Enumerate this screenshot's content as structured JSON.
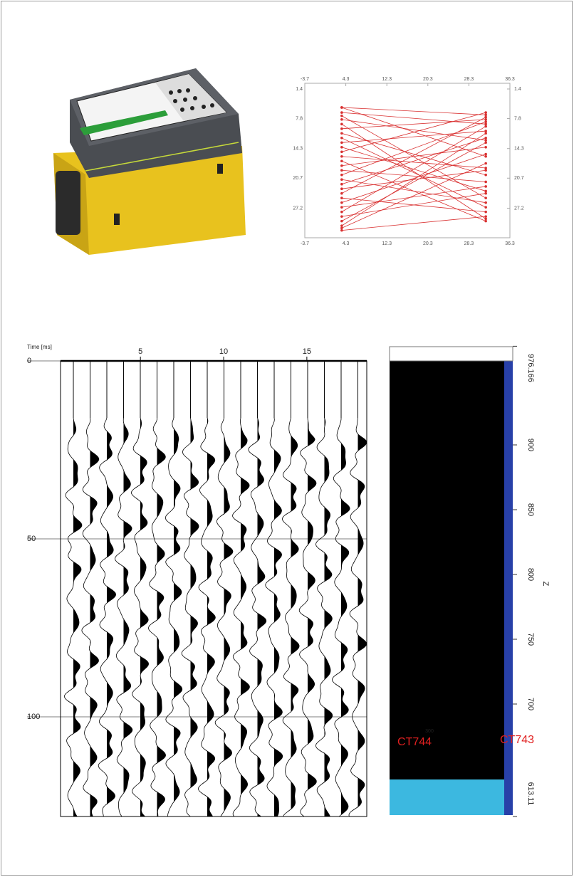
{
  "figures": {
    "ray_chart": {
      "xlim": [
        -3.7,
        36.3
      ],
      "ylim": [
        1.4,
        33.6
      ],
      "xticks": [
        -3.7,
        4.3,
        12.3,
        20.3,
        28.3,
        36.3
      ],
      "yticks": [
        1.4,
        7.8,
        14.3,
        20.7,
        27.2
      ],
      "source_x": 3.5,
      "receiver_x": 31.6,
      "color": "#d93030",
      "rays": [
        [
          5.4,
          7.0
        ],
        [
          5.4,
          16.0
        ],
        [
          6.5,
          9.0
        ],
        [
          7.2,
          25.0
        ],
        [
          8.0,
          12.5
        ],
        [
          9.0,
          29.5
        ],
        [
          10.0,
          8.0
        ],
        [
          11.0,
          20.0
        ],
        [
          12.0,
          27.0
        ],
        [
          13.0,
          10.5
        ],
        [
          14.0,
          23.5
        ],
        [
          15.0,
          6.5
        ],
        [
          16.0,
          18.5
        ],
        [
          17.0,
          30.0
        ],
        [
          18.0,
          14.0
        ],
        [
          19.0,
          21.5
        ],
        [
          20.0,
          8.5
        ],
        [
          21.0,
          26.0
        ],
        [
          22.0,
          12.0
        ],
        [
          23.0,
          19.0
        ],
        [
          24.0,
          7.5
        ],
        [
          25.0,
          28.0
        ],
        [
          26.0,
          15.5
        ],
        [
          27.0,
          22.5
        ],
        [
          28.0,
          9.5
        ],
        [
          29.0,
          24.0
        ],
        [
          30.0,
          13.0
        ],
        [
          31.0,
          11.0
        ],
        [
          31.5,
          17.5
        ],
        [
          32.0,
          29.0
        ]
      ]
    },
    "seismic": {
      "y_label": "Time [ms]",
      "xlim": [
        0.2,
        18.6
      ],
      "ylim": [
        0,
        128
      ],
      "xticks": [
        5,
        10,
        15
      ],
      "yticks": [
        0,
        50,
        100
      ]
    },
    "tomogram": {
      "zlim": [
        613.11,
        976.166
      ],
      "zticks": [
        976.166,
        900,
        850,
        800,
        750,
        700,
        613.11
      ],
      "axis_label": "Z",
      "wells": [
        "CT744",
        "CT743"
      ],
      "inner_label": "300"
    }
  }
}
